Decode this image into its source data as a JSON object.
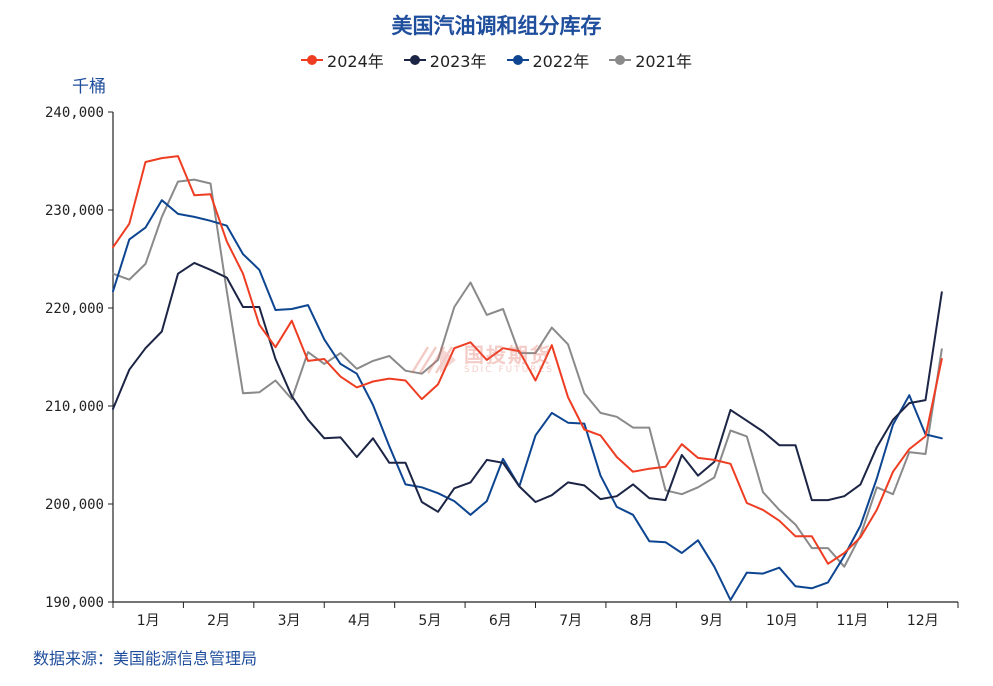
{
  "title": "美国汽油调和组分库存",
  "unit": "千桶",
  "source": "数据来源：美国能源信息管理局",
  "watermark": {
    "cn": "国投期货",
    "en": "SDIC FUTURES"
  },
  "chart_data": {
    "type": "line",
    "title": "美国汽油调和组分库存",
    "ylabel": "千桶",
    "xlabel": "",
    "ylim": [
      190000,
      240000
    ],
    "yticks": [
      190000,
      200000,
      210000,
      220000,
      230000,
      240000
    ],
    "ytick_labels": [
      "190,000",
      "200,000",
      "210,000",
      "220,000",
      "230,000",
      "240,000"
    ],
    "xticks": [
      "1月",
      "2月",
      "3月",
      "4月",
      "5月",
      "6月",
      "7月",
      "8月",
      "9月",
      "10月",
      "11月",
      "12月"
    ],
    "x_unit": "week",
    "x_range": [
      1,
      53
    ],
    "legend_position": "top-center",
    "series": [
      {
        "name": "2024年",
        "color": "#ee3d22",
        "values": [
          226200,
          228600,
          234900,
          235300,
          235500,
          231500,
          231600,
          226800,
          223500,
          218300,
          216000,
          218700,
          214600,
          214800,
          213000,
          211900,
          212500,
          212800,
          212600,
          210700,
          212200,
          215900,
          216500,
          214700,
          215900,
          215600,
          212600,
          216200,
          210900,
          207600,
          207000,
          204800,
          203300,
          203600,
          203800,
          206100,
          204700,
          204500,
          204100,
          200100,
          199400,
          198300,
          196700,
          196700,
          193900,
          195000,
          196600,
          199400,
          203300,
          205600,
          206900,
          214800
        ]
      },
      {
        "name": "2023年",
        "color": "#1c2545",
        "values": [
          209700,
          213700,
          215900,
          217600,
          223500,
          224600,
          223900,
          223100,
          220100,
          220100,
          214800,
          211000,
          208600,
          206700,
          206800,
          204800,
          206700,
          204200,
          204200,
          200200,
          199200,
          201600,
          202200,
          204500,
          204200,
          201800,
          200200,
          200900,
          202200,
          201900,
          200500,
          200800,
          202000,
          200600,
          200400,
          205000,
          202900,
          204300,
          209600,
          208500,
          207400,
          206000,
          206000,
          200400,
          200400,
          200800,
          202000,
          205800,
          208600,
          210300,
          210600,
          221600
        ]
      },
      {
        "name": "2022年",
        "color": "#0d4591",
        "values": [
          221700,
          227000,
          228200,
          231000,
          229600,
          229300,
          228900,
          228400,
          225500,
          223900,
          219800,
          219900,
          220300,
          216800,
          214300,
          213300,
          210100,
          205900,
          202000,
          201700,
          201100,
          200300,
          198900,
          200300,
          204600,
          201800,
          207000,
          209300,
          208300,
          208200,
          202900,
          199700,
          198900,
          196200,
          196100,
          195000,
          196300,
          193600,
          190200,
          193000,
          192900,
          193500,
          191600,
          191400,
          192000,
          194700,
          197800,
          202600,
          208100,
          211100,
          207100,
          206700
        ]
      },
      {
        "name": "2021年",
        "color": "#8a8a8a",
        "values": [
          223500,
          222900,
          224500,
          229300,
          232900,
          233100,
          232700,
          221700,
          211300,
          211400,
          212600,
          210700,
          215500,
          214300,
          215400,
          213800,
          214600,
          215100,
          213600,
          213300,
          214700,
          220100,
          222600,
          219300,
          219900,
          215400,
          215400,
          218000,
          216300,
          211300,
          209300,
          208900,
          207800,
          207800,
          201400,
          201000,
          201700,
          202700,
          207500,
          206900,
          201200,
          199400,
          197900,
          195500,
          195500,
          193600,
          196800,
          201700,
          201000,
          205300,
          205100,
          215800
        ]
      }
    ]
  }
}
